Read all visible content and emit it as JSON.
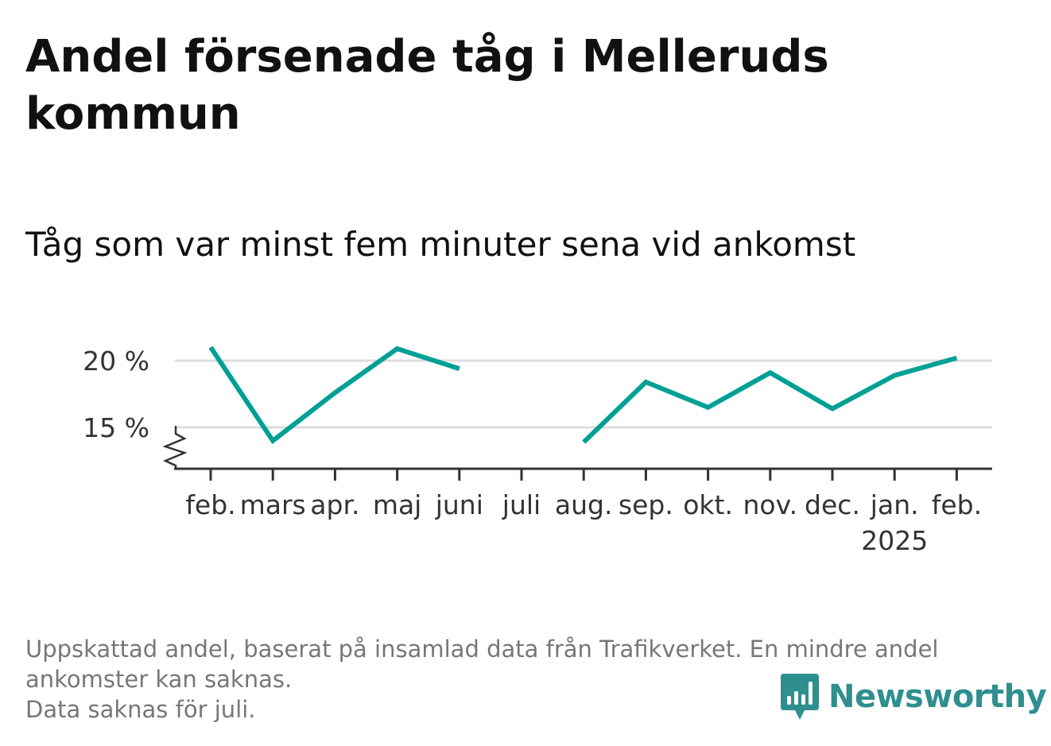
{
  "title": "Andel försenade tåg i Melleruds kommun",
  "subtitle": "Tåg som var minst fem minuter sena vid ankomst",
  "footnote": {
    "line1": "Uppskattad andel, baserat på insamlad data från Trafikverket. En mindre andel",
    "line2": "ankomster kan saknas.",
    "line3": "Data saknas för juli."
  },
  "brand": {
    "name": "Newsworthy",
    "color": "#2f8f8f"
  },
  "colors": {
    "line": "#00a096",
    "grid": "#dddddd",
    "axis": "#333333"
  },
  "chart_data": {
    "type": "line",
    "categories": [
      "feb.",
      "mars",
      "apr.",
      "maj",
      "juni",
      "juli",
      "aug.",
      "sep.",
      "okt.",
      "nov.",
      "dec.",
      "jan.",
      "feb."
    ],
    "year_label": "2025",
    "year_label_index": 11,
    "series": [
      {
        "values": [
          21.0,
          14.0,
          17.6,
          20.9,
          19.4,
          null,
          13.9,
          18.4,
          16.5,
          19.1,
          16.4,
          18.9,
          20.2
        ]
      }
    ],
    "y_ticks": [
      {
        "value": 15,
        "label": "15 %"
      },
      {
        "value": 20,
        "label": "20 %"
      }
    ],
    "ylim": [
      12,
      21.5
    ],
    "axis_break": true,
    "grid": true,
    "missing": [
      "juli"
    ]
  }
}
